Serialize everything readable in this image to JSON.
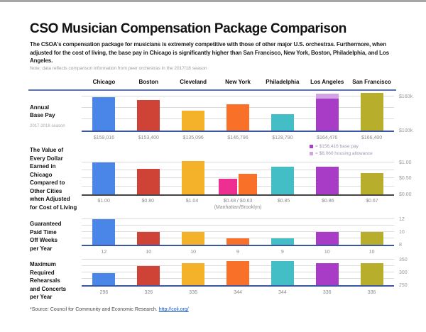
{
  "page": {
    "title": "CSO Musician Compensation Package Comparison",
    "subtitle": "The CSOA's compensation package for musicians is extremely competitive with those of other major U.S. orchestras. Furthermore, when adjusted for the cost of living, the base pay in Chicago is significantly higher than San Francisco, New York, Boston, Philadelphia, and Los Angeles.",
    "note": "Note: data reflects comparison information from peer orchestras in the 2017/18 season",
    "source_prefix": "*Source: Council for Community and Economic Research. ",
    "source_link": "http://coli.org/"
  },
  "columns": [
    "Chicago",
    "Boston",
    "Cleveland",
    "New York",
    "Philadelphia",
    "Los Angeles",
    "San Francisco"
  ],
  "colors": {
    "chicago_blue": "#4a86e8",
    "boston_red": "#cf4337",
    "cleveland_yellow": "#f3b229",
    "new_york_orange": "#f97029",
    "manhattan_pink": "#ee2e90",
    "philadelphia_teal": "#43bec7",
    "los_angeles_purple": "#a83cc7",
    "housing_light_purple": "#d2a4e4",
    "san_francisco_olive": "#b7af2c",
    "divider_blue": "#5a74ab",
    "baseline_navy": "#3b57a3",
    "baseline_dark": "#454545"
  },
  "chart_data": [
    {
      "type": "bar",
      "title": "Annual\nBase Pay",
      "subtitle": "2017-2018 season",
      "categories": [
        "Chicago",
        "Boston",
        "Cleveland",
        "New York",
        "Philadelphia",
        "Los Angeles",
        "San Francisco"
      ],
      "ylim": [
        100000,
        167500
      ],
      "baseline_color": "#3b57a3",
      "ticks": [
        {
          "value": 160000,
          "label": "$160k"
        },
        {
          "value": 140000
        },
        {
          "value": 120000
        },
        {
          "value": 100000,
          "label": "$100k"
        }
      ],
      "bars": [
        {
          "stack": [
            {
              "value": 159016,
              "color": "#4a86e8"
            }
          ],
          "label": "$159,016"
        },
        {
          "stack": [
            {
              "value": 153400,
              "color": "#cf4337"
            }
          ],
          "label": "$153,400"
        },
        {
          "stack": [
            {
              "value": 135096,
              "color": "#f3b229"
            }
          ],
          "label": "$135,096"
        },
        {
          "stack": [
            {
              "value": 146796,
              "color": "#f97029"
            }
          ],
          "label": "$146,796"
        },
        {
          "stack": [
            {
              "value": 128790,
              "color": "#43bec7"
            }
          ],
          "label": "$128,790"
        },
        {
          "stack": [
            {
              "value": 156416,
              "color": "#a83cc7"
            },
            {
              "value": 8060,
              "color": "#d2a4e4"
            }
          ],
          "label": "$164,476"
        },
        {
          "stack": [
            {
              "value": 166400,
              "color": "#b7af2c"
            }
          ],
          "label": "$166,400"
        }
      ],
      "legend": [
        {
          "swatch": "#a83cc7",
          "label": "= $156,416 base pay"
        },
        {
          "swatch": "#d2a4e4",
          "label": "= $8,060 housing allowance"
        }
      ]
    },
    {
      "type": "bar",
      "title": "The Value of\nEvery Dollar\nEarned in\nChicago\nCompared to\nOther Cities\nwhen Adjusted\nfor Cost of Living",
      "subtitle": "",
      "categories": [
        "Chicago",
        "Boston",
        "Cleveland",
        "New York",
        "Philadelphia",
        "Los Angeles",
        "San Francisco"
      ],
      "ylim": [
        0,
        1.1
      ],
      "baseline_color": "#454545",
      "ticks": [
        {
          "value": 1.0,
          "label": "$1.00"
        },
        {
          "value": 0.75
        },
        {
          "value": 0.5,
          "label": "$0.50"
        },
        {
          "value": 0.25
        },
        {
          "value": 0,
          "label": "$0.00"
        }
      ],
      "bars": [
        {
          "stack": [
            {
              "value": 1.0,
              "color": "#4a86e8"
            }
          ],
          "label": "$1.00"
        },
        {
          "stack": [
            {
              "value": 0.8,
              "color": "#cf4337"
            }
          ],
          "label": "$0.80"
        },
        {
          "stack": [
            {
              "value": 1.04,
              "color": "#f3b229"
            }
          ],
          "label": "$1.04"
        },
        {
          "group": [
            {
              "value": 0.48,
              "color": "#ee2e90"
            },
            {
              "value": 0.63,
              "color": "#f97029"
            }
          ],
          "label": "$0.48 / $0.63",
          "sublabel": "(Manhattan/Brooklyn)"
        },
        {
          "stack": [
            {
              "value": 0.85,
              "color": "#43bec7"
            }
          ],
          "label": "$0.85"
        },
        {
          "stack": [
            {
              "value": 0.86,
              "color": "#a83cc7"
            }
          ],
          "label": "$0.86"
        },
        {
          "stack": [
            {
              "value": 0.67,
              "color": "#b7af2c"
            }
          ],
          "label": "$0.67"
        }
      ]
    },
    {
      "type": "bar",
      "title": "Guaranteed\nPaid Time\nOff Weeks\nper Year",
      "subtitle": "",
      "categories": [
        "Chicago",
        "Boston",
        "Cleveland",
        "New York",
        "Philadelphia",
        "Los Angeles",
        "San Francisco"
      ],
      "ylim": [
        8,
        12
      ],
      "baseline_color": "#3b57a3",
      "ticks": [
        {
          "value": 12,
          "label": "12"
        },
        {
          "value": 11
        },
        {
          "value": 10,
          "label": "10"
        },
        {
          "value": 9
        },
        {
          "value": 8,
          "label": "8"
        }
      ],
      "bars": [
        {
          "stack": [
            {
              "value": 12,
              "color": "#4a86e8"
            }
          ],
          "label": "12"
        },
        {
          "stack": [
            {
              "value": 10,
              "color": "#cf4337"
            }
          ],
          "label": "10"
        },
        {
          "stack": [
            {
              "value": 10,
              "color": "#f3b229"
            }
          ],
          "label": "10"
        },
        {
          "stack": [
            {
              "value": 9,
              "color": "#f97029"
            }
          ],
          "label": "9"
        },
        {
          "stack": [
            {
              "value": 9,
              "color": "#43bec7"
            }
          ],
          "label": "9"
        },
        {
          "stack": [
            {
              "value": 10,
              "color": "#a83cc7"
            }
          ],
          "label": "10"
        },
        {
          "stack": [
            {
              "value": 10,
              "color": "#b7af2c"
            }
          ],
          "label": "10"
        }
      ]
    },
    {
      "type": "bar",
      "title": "Maximum\nRequired\nRehearsals\nand Concerts\nper Year",
      "subtitle": "",
      "categories": [
        "Chicago",
        "Boston",
        "Cleveland",
        "New York",
        "Philadelphia",
        "Los Angeles",
        "San Francisco"
      ],
      "ylim": [
        250,
        350
      ],
      "baseline_color": "#3b57a3",
      "ticks": [
        {
          "value": 350,
          "label": "350"
        },
        {
          "value": 325
        },
        {
          "value": 300,
          "label": "300"
        },
        {
          "value": 275
        },
        {
          "value": 250,
          "label": "250"
        }
      ],
      "bars": [
        {
          "stack": [
            {
              "value": 296,
              "color": "#4a86e8"
            }
          ],
          "label": "296"
        },
        {
          "stack": [
            {
              "value": 326,
              "color": "#cf4337"
            }
          ],
          "label": "326"
        },
        {
          "stack": [
            {
              "value": 336,
              "color": "#f3b229"
            }
          ],
          "label": "336"
        },
        {
          "stack": [
            {
              "value": 344,
              "color": "#f97029"
            }
          ],
          "label": "344"
        },
        {
          "stack": [
            {
              "value": 344,
              "color": "#43bec7"
            }
          ],
          "label": "344"
        },
        {
          "stack": [
            {
              "value": 336,
              "color": "#a83cc7"
            }
          ],
          "label": "336"
        },
        {
          "stack": [
            {
              "value": 336,
              "color": "#b7af2c"
            }
          ],
          "label": "336"
        }
      ]
    }
  ]
}
